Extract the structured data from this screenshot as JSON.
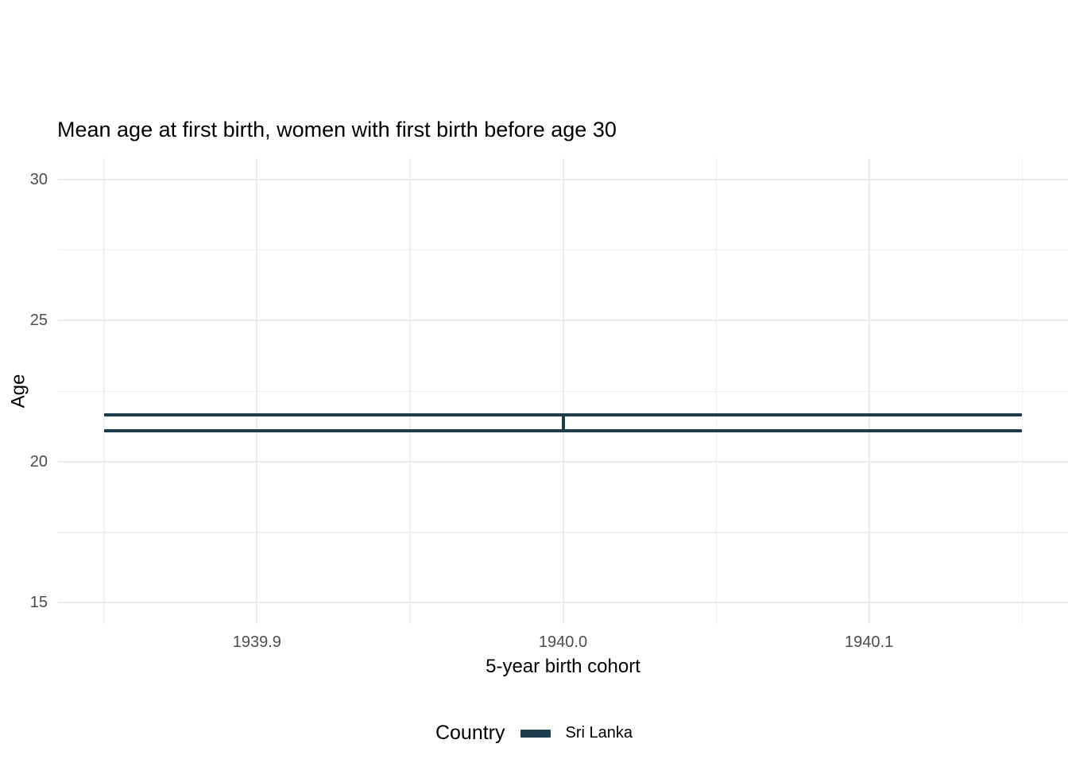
{
  "colors": {
    "background": "#ffffff",
    "grid_major": "#ebebeb",
    "grid_minor": "#f0f0f0",
    "tick_label": "#4d4d4d",
    "text": "#000000",
    "series_line": "#1d3d4a"
  },
  "chart_data": {
    "type": "errorbar",
    "title": "Mean age at first birth, women with first birth before age 30",
    "xlabel": "5-year birth cohort",
    "ylabel": "Age",
    "legend_title": "Country",
    "legend_position": "bottom",
    "grid": true,
    "xlim": [
      1939.835,
      1940.165
    ],
    "ylim": [
      14.25,
      30.75
    ],
    "x_ticks": [
      1939.9,
      1940.0,
      1940.1
    ],
    "x_tick_labels": [
      "1939.9",
      "1940.0",
      "1940.1"
    ],
    "x_minor_ticks": [
      1939.85,
      1939.95,
      1940.05,
      1940.15
    ],
    "y_ticks": [
      30,
      25,
      20,
      15
    ],
    "y_tick_labels": [
      "30",
      "25",
      "20",
      "15"
    ],
    "y_minor_ticks": [
      27.5,
      22.5,
      17.5
    ],
    "series": [
      {
        "name": "Sri Lanka",
        "color": "#1d3d4a",
        "points": [
          {
            "x": 1940.0,
            "ymin": 21.1,
            "ymax": 21.65,
            "cap_xmin": 1939.85,
            "cap_xmax": 1940.15
          }
        ]
      }
    ]
  }
}
